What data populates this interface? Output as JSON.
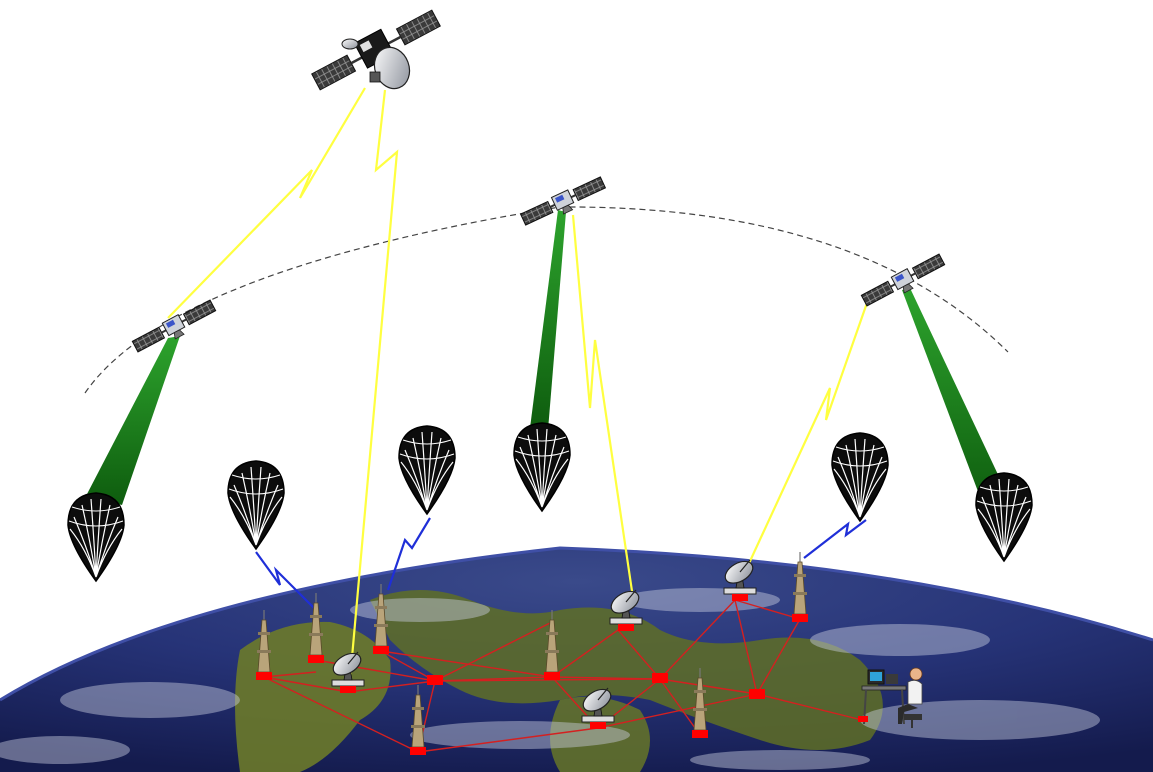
{
  "colors": {
    "background": "#ffffff",
    "orbit": "#444444",
    "uplink": "#ffff40",
    "beam": "#1f8a1f",
    "balloon_link": "#1f2fd8",
    "ground_link": "#d42020",
    "node": "#ff0000",
    "ocean": "#1e2a6e",
    "land": "#6f7d2a",
    "cloud": "#c9cfe0"
  },
  "elements": {
    "geo_satellite": "geostationary-satellite-icon",
    "leo_satellites": [
      "satellite-icon-left",
      "satellite-icon-center",
      "satellite-icon-right"
    ],
    "balloons": [
      "balloon-icon-1",
      "balloon-icon-2",
      "balloon-icon-3",
      "balloon-icon-4",
      "balloon-icon-5",
      "balloon-icon-6"
    ],
    "ground_stations": [
      "dish-antenna-icon-america",
      "dish-antenna-icon-europe",
      "dish-antenna-icon-asia",
      "dish-antenna-icon-south"
    ],
    "towers": [
      "radio-tower-icon"
    ],
    "operator": "operator-workstation-icon"
  }
}
